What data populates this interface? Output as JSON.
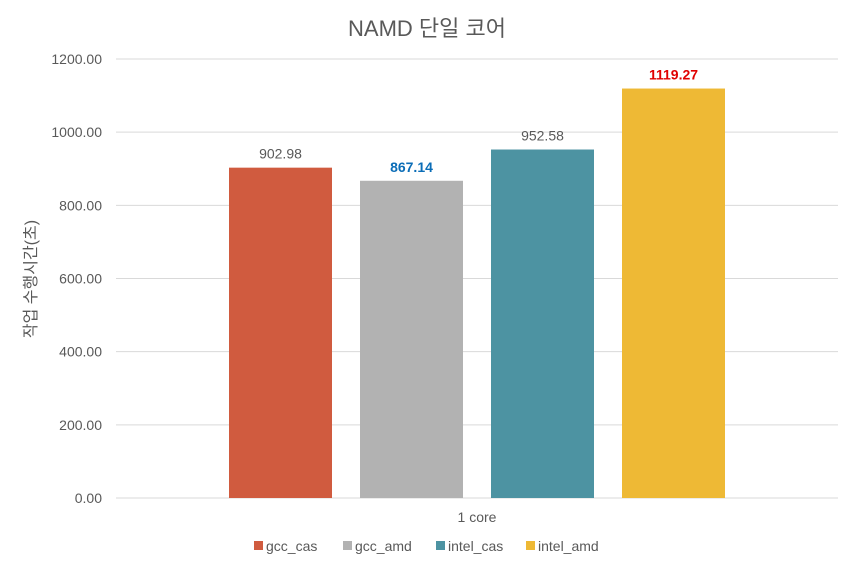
{
  "chart_data": {
    "type": "bar",
    "title": "NAMD 단일 코어",
    "xlabel": "",
    "ylabel": "작업 수행시간(초)",
    "categories": [
      "1 core"
    ],
    "ylim": [
      0,
      1200
    ],
    "yticks": [
      "0.00",
      "200.00",
      "400.00",
      "600.00",
      "800.00",
      "1000.00",
      "1200.00"
    ],
    "grid": true,
    "legend_position": "bottom",
    "series": [
      {
        "name": "gcc_cas",
        "values": [
          902.98
        ],
        "label": "902.98",
        "color": "#d05b3f",
        "label_color": "#595959",
        "label_bold": false
      },
      {
        "name": "gcc_amd",
        "values": [
          867.14
        ],
        "label": "867.14",
        "color": "#b2b2b2",
        "label_color": "#0b6db7",
        "label_bold": true
      },
      {
        "name": "intel_cas",
        "values": [
          952.58
        ],
        "label": "952.58",
        "color": "#4d93a2",
        "label_color": "#595959",
        "label_bold": false
      },
      {
        "name": "intel_amd",
        "values": [
          1119.27
        ],
        "label": "1119.27",
        "color": "#eeb935",
        "label_color": "#e00000",
        "label_bold": true
      }
    ]
  }
}
